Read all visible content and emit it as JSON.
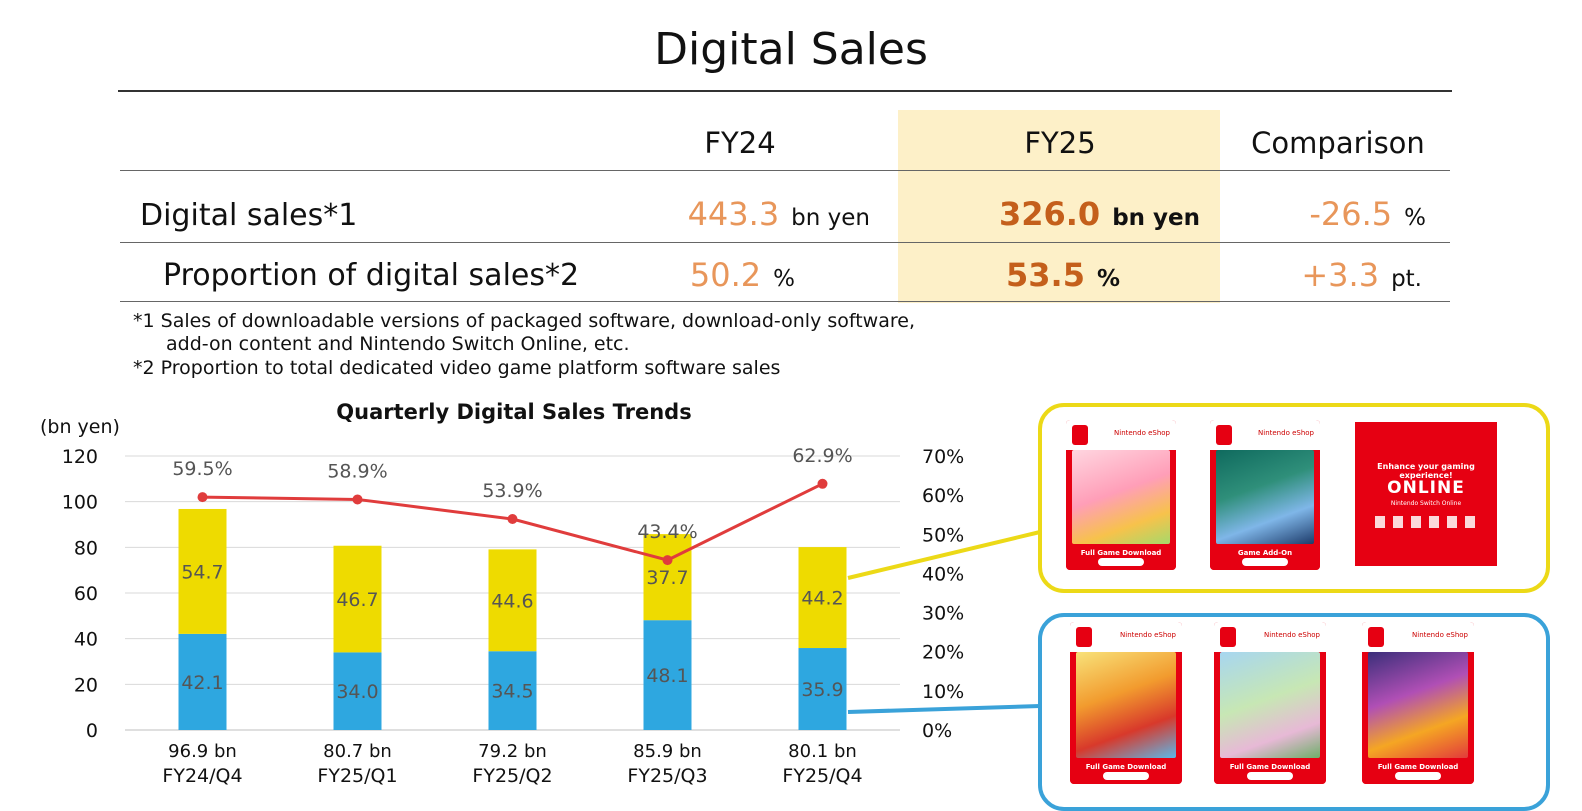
{
  "title": "Digital Sales",
  "table": {
    "col_fy24": "FY24",
    "col_fy25": "FY25",
    "col_comp": "Comparison",
    "rows": [
      {
        "label": "Digital sales*1",
        "fy24": "443.3",
        "fy24_unit": "bn yen",
        "fy25": "326.0",
        "fy25_unit": "bn yen",
        "comp": "-26.5",
        "comp_unit": "%"
      },
      {
        "label": "Proportion of digital sales*2",
        "fy24": "50.2",
        "fy24_unit": "%",
        "fy25": "53.5",
        "fy25_unit": "%",
        "comp": "+3.3",
        "comp_unit": "pt."
      }
    ],
    "colors": {
      "light": "#e8965a",
      "dark": "#c45f1b",
      "highlight": "#fdf0c8"
    }
  },
  "notes": [
    "*1 Sales of downloadable versions of packaged software, download-only software,",
    "add-on content and Nintendo Switch Online, etc.",
    "*2 Proportion to total dedicated video game platform software sales"
  ],
  "chart_data": {
    "type": "bar",
    "title": "Quarterly Digital Sales Trends",
    "ylabel": "(bn yen)",
    "ylim": [
      0,
      120
    ],
    "yticks": [
      0,
      20,
      40,
      60,
      80,
      100,
      120
    ],
    "y2lim": [
      0,
      70
    ],
    "y2ticks": [
      "0%",
      "10%",
      "20%",
      "30%",
      "40%",
      "50%",
      "60%",
      "70%"
    ],
    "categories": [
      "FY24/Q4",
      "FY25/Q1",
      "FY25/Q2",
      "FY25/Q3",
      "FY25/Q4"
    ],
    "totals": [
      "96.9 bn",
      "80.7 bn",
      "79.2 bn",
      "85.9 bn",
      "80.1 bn"
    ],
    "series": [
      {
        "kind": "bar",
        "color": "#2ea7e0",
        "values": [
          42.1,
          34.0,
          34.5,
          48.1,
          35.9
        ],
        "labels": [
          "42.1",
          "34.0",
          "34.5",
          "48.1",
          "35.9"
        ]
      },
      {
        "kind": "bar",
        "color": "#eedb00",
        "values": [
          54.7,
          46.7,
          44.6,
          37.7,
          44.2
        ],
        "labels": [
          "54.7",
          "46.7",
          "44.6",
          "37.7",
          "44.2"
        ]
      },
      {
        "kind": "line",
        "axis": "right",
        "color": "#e03c3c",
        "values": [
          59.5,
          58.9,
          53.9,
          43.4,
          62.9
        ],
        "labels": [
          "59.5%",
          "58.9%",
          "53.9%",
          "43.4%",
          "62.9%"
        ]
      }
    ],
    "grid": true,
    "legend": "none"
  },
  "product_panels": {
    "addon": {
      "border_color": "#ecd917",
      "cards": [
        "Full Game Download",
        "Game Add-On"
      ],
      "online_tagline": "Enhance your gaming experience!",
      "online_logo": "ONLINE",
      "online_sub": "Nintendo Switch Online"
    },
    "download": {
      "border_color": "#3aa2d9",
      "cards": [
        "Full Game Download",
        "Full Game Download",
        "Full Game Download"
      ]
    },
    "eshop_label": "Nintendo eShop"
  }
}
